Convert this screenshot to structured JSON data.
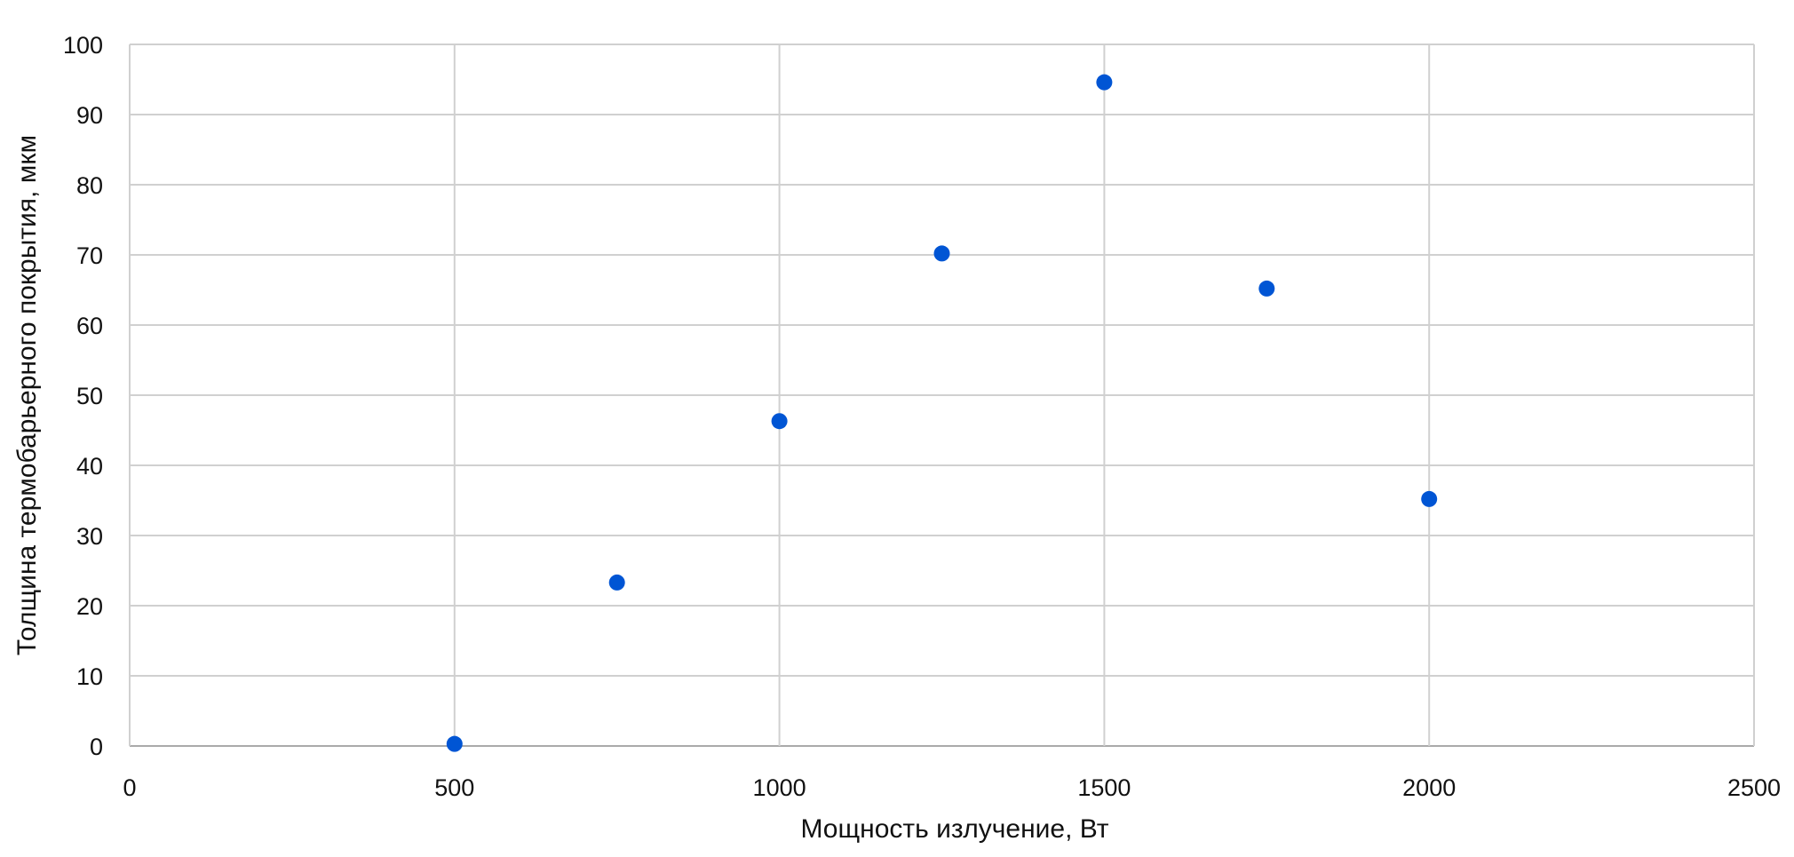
{
  "chart_data": {
    "type": "scatter",
    "title": "",
    "xlabel": "Мощность излучение, Вт",
    "ylabel": "Толщина термобарьерного покрытия, мкм",
    "xlim": [
      0,
      2500
    ],
    "ylim": [
      0,
      100
    ],
    "xticks": [
      0,
      500,
      1000,
      1500,
      2000,
      2500
    ],
    "yticks": [
      0,
      10,
      20,
      30,
      40,
      50,
      60,
      70,
      80,
      90,
      100
    ],
    "grid": true,
    "legend": "none",
    "marker_color": "#0055d4",
    "points": [
      {
        "x": 500,
        "y": 0.3
      },
      {
        "x": 750,
        "y": 23.3
      },
      {
        "x": 1000,
        "y": 46.3
      },
      {
        "x": 1250,
        "y": 70.2
      },
      {
        "x": 1500,
        "y": 94.6
      },
      {
        "x": 1750,
        "y": 65.2
      },
      {
        "x": 2000,
        "y": 35.2
      }
    ]
  }
}
